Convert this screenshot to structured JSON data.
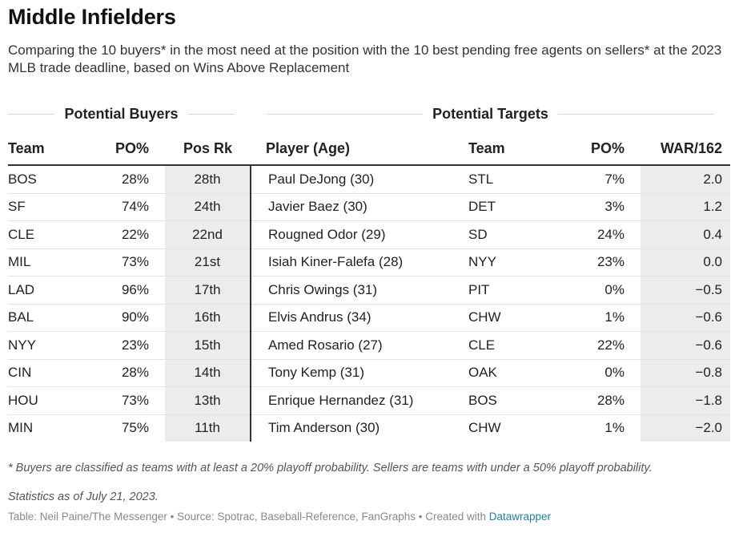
{
  "title": "Middle Infielders",
  "subtitle": "Comparing the 10 buyers* in the most need at the position with the 10 best pending free agents on sellers* at the 2023 MLB trade deadline, based on Wins Above Replacement",
  "groups": {
    "buyers": "Potential Buyers",
    "targets": "Potential Targets"
  },
  "columns": {
    "team": "Team",
    "po": "PO%",
    "pos_rk": "Pos Rk",
    "player": "Player (Age)",
    "team2": "Team",
    "po2": "PO%",
    "war": "WAR/162"
  },
  "rows": [
    {
      "team": "BOS",
      "po": "28%",
      "pos_rk": "28th",
      "player": "Paul DeJong (30)",
      "team2": "STL",
      "po2": "7%",
      "war": "2.0"
    },
    {
      "team": "SF",
      "po": "74%",
      "pos_rk": "24th",
      "player": "Javier Baez (30)",
      "team2": "DET",
      "po2": "3%",
      "war": "1.2"
    },
    {
      "team": "CLE",
      "po": "22%",
      "pos_rk": "22nd",
      "player": "Rougned Odor (29)",
      "team2": "SD",
      "po2": "24%",
      "war": "0.4"
    },
    {
      "team": "MIL",
      "po": "73%",
      "pos_rk": "21st",
      "player": "Isiah Kiner-Falefa (28)",
      "team2": "NYY",
      "po2": "23%",
      "war": "0.0"
    },
    {
      "team": "LAD",
      "po": "96%",
      "pos_rk": "17th",
      "player": "Chris Owings (31)",
      "team2": "PIT",
      "po2": "0%",
      "war": "−0.5"
    },
    {
      "team": "BAL",
      "po": "90%",
      "pos_rk": "16th",
      "player": "Elvis Andrus (34)",
      "team2": "CHW",
      "po2": "1%",
      "war": "−0.6"
    },
    {
      "team": "NYY",
      "po": "23%",
      "pos_rk": "15th",
      "player": "Amed Rosario (27)",
      "team2": "CLE",
      "po2": "22%",
      "war": "−0.6"
    },
    {
      "team": "CIN",
      "po": "28%",
      "pos_rk": "14th",
      "player": "Tony Kemp (31)",
      "team2": "OAK",
      "po2": "0%",
      "war": "−0.8"
    },
    {
      "team": "HOU",
      "po": "73%",
      "pos_rk": "13th",
      "player": "Enrique Hernandez (31)",
      "team2": "BOS",
      "po2": "28%",
      "war": "−1.8"
    },
    {
      "team": "MIN",
      "po": "75%",
      "pos_rk": "11th",
      "player": "Tim Anderson (30)",
      "team2": "CHW",
      "po2": "1%",
      "war": "−2.0"
    }
  ],
  "footnote": "* Buyers are classified as teams with at least a 20% playoff probability. Sellers are teams with under a 50% playoff probability.",
  "as_of": "Statistics as of July 21, 2023.",
  "credit": {
    "text": "Table: Neil Paine/The Messenger • Source: Spotrac, Baseball-Reference, FanGraphs • Created with ",
    "link": "Datawrapper"
  },
  "colors": {
    "shade": "#ececec",
    "link": "#1d81a2",
    "rule": "#333333"
  }
}
